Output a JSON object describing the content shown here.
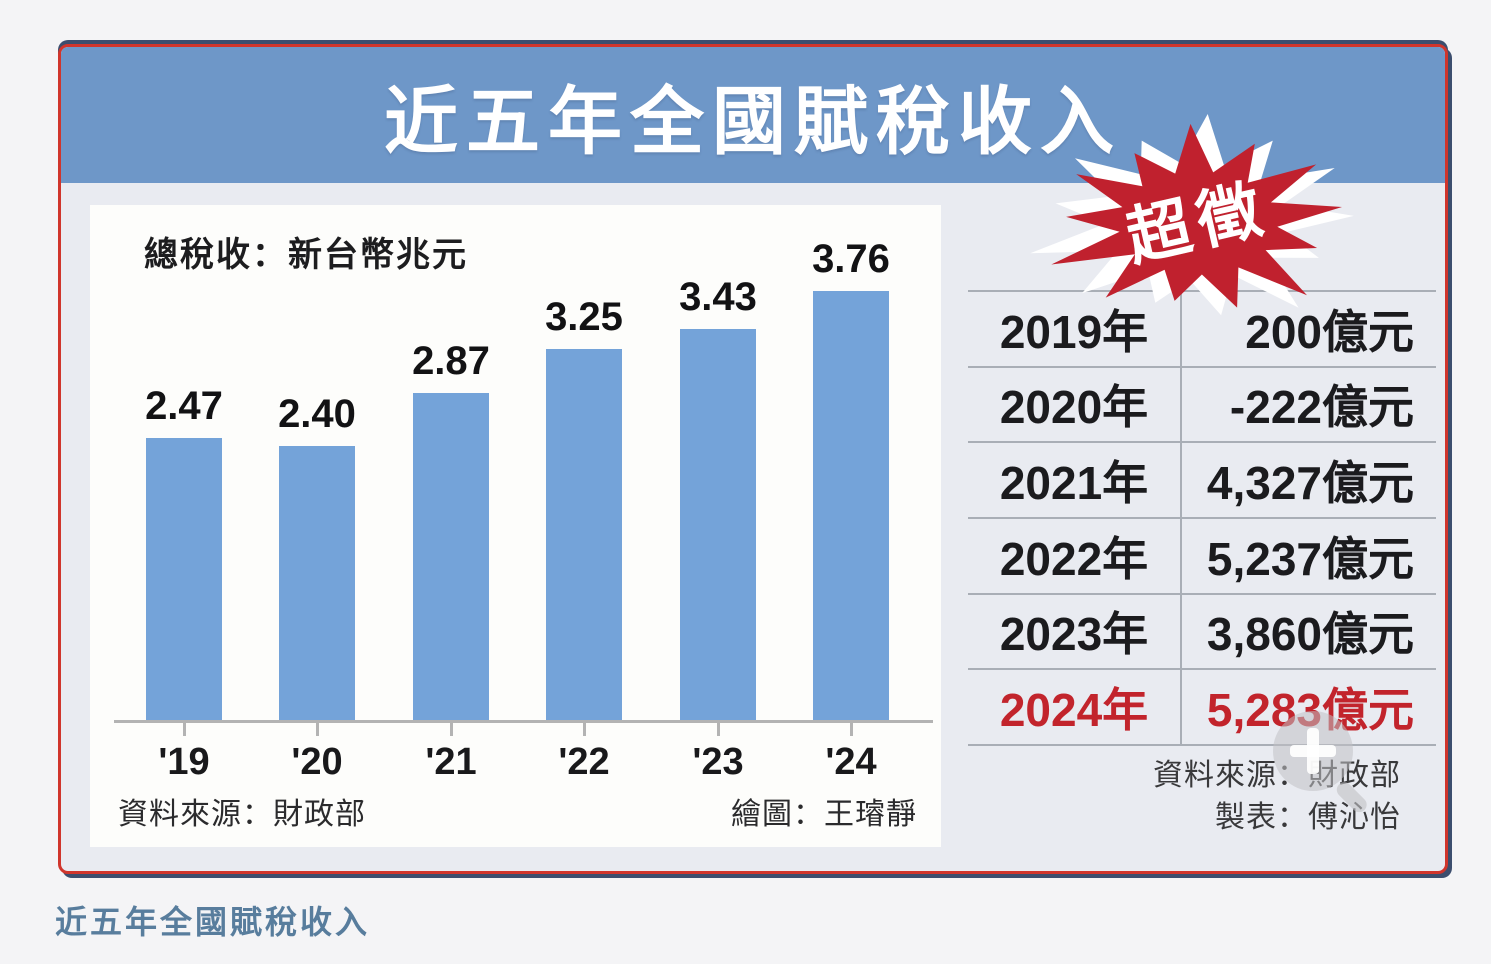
{
  "page": {
    "caption": "近五年全國賦稅收入"
  },
  "infographic": {
    "title": "近五年全國賦稅收入",
    "badge_label": "超徵",
    "chart_note": "總稅收：新台幣兆元",
    "chart_source": "資料來源：財政部",
    "chart_credit": "繪圖：王璿靜",
    "table_source": "資料來源：財政部",
    "table_credit": "製表：傅沁怡",
    "watermark_icon": "zoom-in-icon"
  },
  "colors": {
    "banner": "#6e97c8",
    "bar": "#74a3d9",
    "badge": "#c0212e",
    "highlight": "#c2242c",
    "frame_border": "#d0352c",
    "caption": "#587d9d"
  },
  "chart_data": {
    "type": "bar",
    "title": "近五年全國賦稅收入",
    "unit_note": "總稅收：新台幣兆元",
    "categories": [
      "'19",
      "'20",
      "'21",
      "'22",
      "'23",
      "'24"
    ],
    "values": [
      2.47,
      2.4,
      2.87,
      3.25,
      3.43,
      3.76
    ],
    "value_labels": [
      "2.47",
      "2.40",
      "2.87",
      "3.25",
      "3.43",
      "3.76"
    ],
    "ylabel": "總稅收（新台幣兆元）",
    "ylim": [
      0,
      4
    ],
    "grid": false,
    "legend": false
  },
  "overage_table": {
    "rows": [
      {
        "year": "2019年",
        "amount": "200億元",
        "highlight": false
      },
      {
        "year": "2020年",
        "amount": "-222億元",
        "highlight": false
      },
      {
        "year": "2021年",
        "amount": "4,327億元",
        "highlight": false
      },
      {
        "year": "2022年",
        "amount": "5,237億元",
        "highlight": false
      },
      {
        "year": "2023年",
        "amount": "3,860億元",
        "highlight": false
      },
      {
        "year": "2024年",
        "amount": "5,283億元",
        "highlight": true
      }
    ]
  }
}
